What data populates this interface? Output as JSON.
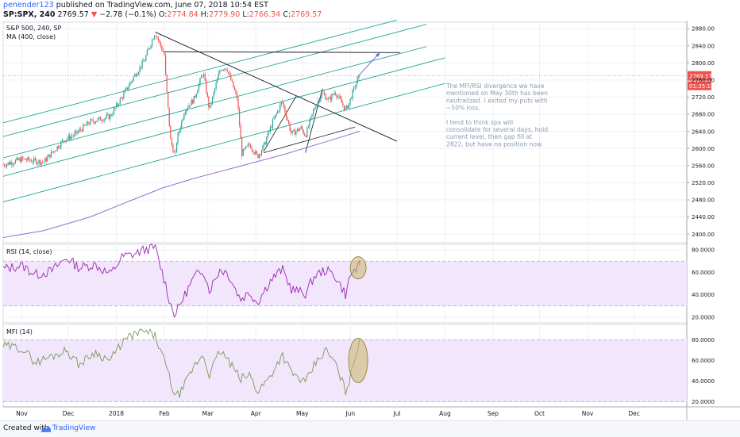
{
  "header": {
    "author": "penender123",
    "published": " published on TradingView.com, June 07, 2018 10:54 EST",
    "symbol": "SP:SPX, 240",
    "last": "2769.57",
    "change_arrow": "▼",
    "change": "−2.78 (−0.1%)",
    "open_label": "O:",
    "open": "2774.84",
    "high_label": "H:",
    "high": "2779.90",
    "low_label": "L:",
    "low": "2766.34",
    "close_label": "C:",
    "close": "2769.57"
  },
  "footer": {
    "created_with": "Created with",
    "brand": "TradingView"
  },
  "colors": {
    "up": "#26a69a",
    "down": "#ef5350",
    "channel": "#26a69a",
    "ma": "#9b6bd6",
    "rsi": "#9c27b0",
    "mfi": "#7a9a5a",
    "band": "#f1e6fb",
    "note_text": "#8a9bb0",
    "price_tag": "#ef5350",
    "ellipse_fill": "#c9b56a",
    "arrow": "#6b6bd6"
  },
  "chart_data": [
    {
      "type": "candlestick",
      "title": "S&P 500, 240, SP",
      "overlay_label": "MA (400, close)",
      "x_tick_labels": [
        "Nov",
        "Dec",
        "2018",
        "Feb",
        "Mar",
        "Apr",
        "May",
        "Jun",
        "Jul",
        "Aug",
        "Sep",
        "Oct",
        "Nov",
        "Dec"
      ],
      "y_tick_labels": [
        "2880.00",
        "2840.00",
        "2800.00",
        "2760.00",
        "2720.00",
        "2680.00",
        "2640.00",
        "2600.00",
        "2560.00",
        "2520.00",
        "2480.00",
        "2440.00",
        "2400.00"
      ],
      "ylim": [
        2380,
        2895
      ],
      "last_price": "2769.57",
      "countdown": "01:35:15",
      "path": [
        [
          "2017-10-20",
          2562
        ],
        [
          "2017-11-01",
          2575
        ],
        [
          "2017-11-15",
          2568
        ],
        [
          "2017-11-28",
          2620
        ],
        [
          "2017-12-05",
          2632
        ],
        [
          "2017-12-15",
          2662
        ],
        [
          "2017-12-28",
          2675
        ],
        [
          "2018-01-05",
          2722
        ],
        [
          "2018-01-12",
          2766
        ],
        [
          "2018-01-19",
          2805
        ],
        [
          "2018-01-26",
          2872
        ],
        [
          "2018-02-01",
          2818
        ],
        [
          "2018-02-02",
          2756
        ],
        [
          "2018-02-05",
          2618
        ],
        [
          "2018-02-08",
          2580
        ],
        [
          "2018-02-09",
          2619
        ],
        [
          "2018-02-14",
          2690
        ],
        [
          "2018-02-20",
          2715
        ],
        [
          "2018-02-26",
          2779
        ],
        [
          "2018-03-02",
          2690
        ],
        [
          "2018-03-09",
          2786
        ],
        [
          "2018-03-13",
          2790
        ],
        [
          "2018-03-20",
          2716
        ],
        [
          "2018-03-23",
          2588
        ],
        [
          "2018-03-28",
          2610
        ],
        [
          "2018-04-02",
          2581
        ],
        [
          "2018-04-06",
          2605
        ],
        [
          "2018-04-12",
          2663
        ],
        [
          "2018-04-18",
          2710
        ],
        [
          "2018-04-24",
          2634
        ],
        [
          "2018-04-30",
          2648
        ],
        [
          "2018-05-03",
          2630
        ],
        [
          "2018-05-09",
          2697
        ],
        [
          "2018-05-14",
          2730
        ],
        [
          "2018-05-18",
          2712
        ],
        [
          "2018-05-22",
          2733
        ],
        [
          "2018-05-29",
          2690
        ],
        [
          "2018-05-31",
          2705
        ],
        [
          "2018-06-04",
          2746
        ],
        [
          "2018-06-07",
          2770
        ]
      ],
      "moving_average": [
        [
          "2017-10-20",
          2392
        ],
        [
          "2017-11-15",
          2408
        ],
        [
          "2017-12-15",
          2440
        ],
        [
          "2018-01-10",
          2478
        ],
        [
          "2018-01-31",
          2508
        ],
        [
          "2018-02-20",
          2530
        ],
        [
          "2018-03-20",
          2557
        ],
        [
          "2018-04-20",
          2587
        ],
        [
          "2018-05-20",
          2620
        ],
        [
          "2018-06-07",
          2640
        ]
      ],
      "drawings": {
        "channel_lines": [
          [
            [
              "2017-10-20",
              2660
            ],
            [
              "2018-07-01",
              2900
            ]
          ],
          [
            [
              "2017-10-20",
              2628
            ],
            [
              "2018-07-20",
              2890
            ]
          ],
          [
            [
              "2017-10-20",
              2578
            ],
            [
              "2018-07-20",
              2838
            ]
          ],
          [
            [
              "2017-10-20",
              2535
            ],
            [
              "2018-08-01",
              2812
            ]
          ],
          [
            [
              "2017-10-20",
              2475
            ],
            [
              "2018-08-01",
              2752
            ]
          ]
        ],
        "trend_lines": [
          [
            [
              "2018-01-26",
              2872
            ],
            [
              "2018-07-01",
              2617
            ]
          ],
          [
            [
              "2018-02-01",
              2826
            ],
            [
              "2018-07-03",
              2824
            ]
          ]
        ],
        "wedge_lines": [
          [
            [
              "2018-04-06",
              2593
            ],
            [
              "2018-04-27",
              2722
            ]
          ],
          [
            [
              "2018-04-06",
              2590
            ],
            [
              "2018-06-04",
              2650
            ]
          ],
          [
            [
              "2018-05-03",
              2590
            ],
            [
              "2018-05-14",
              2740
            ]
          ]
        ],
        "arrow": [
          [
            "2018-06-05",
            2765
          ],
          [
            "2018-06-20",
            2824
          ]
        ]
      },
      "annotation": {
        "paragraph1": [
          "The MFI/RSI divergence we have",
          "mentioned on May 30th has been",
          "neutralized. I exited my puts with",
          "~50% loss."
        ],
        "paragraph2": [
          "I tend to think spx will",
          "consolidate for several days, hold",
          "current level, then gap fill at",
          "2822, but have no position now."
        ]
      }
    },
    {
      "type": "line",
      "title": "RSI (14, close)",
      "y_tick_labels": [
        "80.0000",
        "60.0000",
        "40.0000",
        "20.0000"
      ],
      "ylim": [
        15,
        85
      ],
      "band": [
        30,
        70
      ],
      "values": [
        [
          "2017-10-20",
          63
        ],
        [
          "2017-11-01",
          66
        ],
        [
          "2017-11-10",
          58
        ],
        [
          "2017-11-20",
          61
        ],
        [
          "2017-11-30",
          73
        ],
        [
          "2017-12-08",
          64
        ],
        [
          "2017-12-18",
          67
        ],
        [
          "2017-12-28",
          58
        ],
        [
          "2018-01-05",
          74
        ],
        [
          "2018-01-12",
          76
        ],
        [
          "2018-01-19",
          80
        ],
        [
          "2018-01-26",
          82
        ],
        [
          "2018-02-02",
          48
        ],
        [
          "2018-02-05",
          31
        ],
        [
          "2018-02-08",
          22
        ],
        [
          "2018-02-12",
          34
        ],
        [
          "2018-02-20",
          55
        ],
        [
          "2018-02-26",
          63
        ],
        [
          "2018-03-02",
          44
        ],
        [
          "2018-03-09",
          63
        ],
        [
          "2018-03-14",
          59
        ],
        [
          "2018-03-22",
          36
        ],
        [
          "2018-03-28",
          42
        ],
        [
          "2018-04-02",
          33
        ],
        [
          "2018-04-10",
          52
        ],
        [
          "2018-04-18",
          63
        ],
        [
          "2018-04-24",
          45
        ],
        [
          "2018-05-03",
          41
        ],
        [
          "2018-05-09",
          57
        ],
        [
          "2018-05-16",
          62
        ],
        [
          "2018-05-22",
          57
        ],
        [
          "2018-05-29",
          40
        ],
        [
          "2018-06-01",
          58
        ],
        [
          "2018-06-07",
          66
        ]
      ]
    },
    {
      "type": "line",
      "title": "MFI (14)",
      "y_tick_labels": [
        "80.0000",
        "60.0000",
        "40.0000",
        "20.0000"
      ],
      "ylim": [
        15,
        95
      ],
      "band": [
        20,
        80
      ],
      "values": [
        [
          "2017-10-20",
          74
        ],
        [
          "2017-11-01",
          72
        ],
        [
          "2017-11-10",
          58
        ],
        [
          "2017-11-20",
          64
        ],
        [
          "2017-11-30",
          70
        ],
        [
          "2017-12-08",
          56
        ],
        [
          "2017-12-18",
          68
        ],
        [
          "2017-12-28",
          60
        ],
        [
          "2018-01-05",
          78
        ],
        [
          "2018-01-12",
          85
        ],
        [
          "2018-01-19",
          88
        ],
        [
          "2018-01-26",
          84
        ],
        [
          "2018-02-02",
          55
        ],
        [
          "2018-02-05",
          40
        ],
        [
          "2018-02-08",
          24
        ],
        [
          "2018-02-12",
          30
        ],
        [
          "2018-02-20",
          54
        ],
        [
          "2018-02-26",
          66
        ],
        [
          "2018-03-02",
          46
        ],
        [
          "2018-03-09",
          70
        ],
        [
          "2018-03-14",
          60
        ],
        [
          "2018-03-22",
          42
        ],
        [
          "2018-03-28",
          46
        ],
        [
          "2018-04-02",
          30
        ],
        [
          "2018-04-10",
          44
        ],
        [
          "2018-04-18",
          66
        ],
        [
          "2018-04-24",
          48
        ],
        [
          "2018-05-03",
          38
        ],
        [
          "2018-05-09",
          56
        ],
        [
          "2018-05-16",
          70
        ],
        [
          "2018-05-22",
          58
        ],
        [
          "2018-05-29",
          30
        ],
        [
          "2018-06-01",
          44
        ],
        [
          "2018-06-07",
          82
        ]
      ]
    }
  ]
}
